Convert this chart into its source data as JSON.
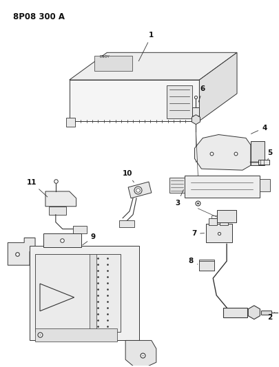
{
  "bg_color": "#ffffff",
  "line_color": "#333333",
  "fig_width": 4.05,
  "fig_height": 5.33,
  "dpi": 100,
  "header": "8P08 300 A",
  "lw": 0.7
}
